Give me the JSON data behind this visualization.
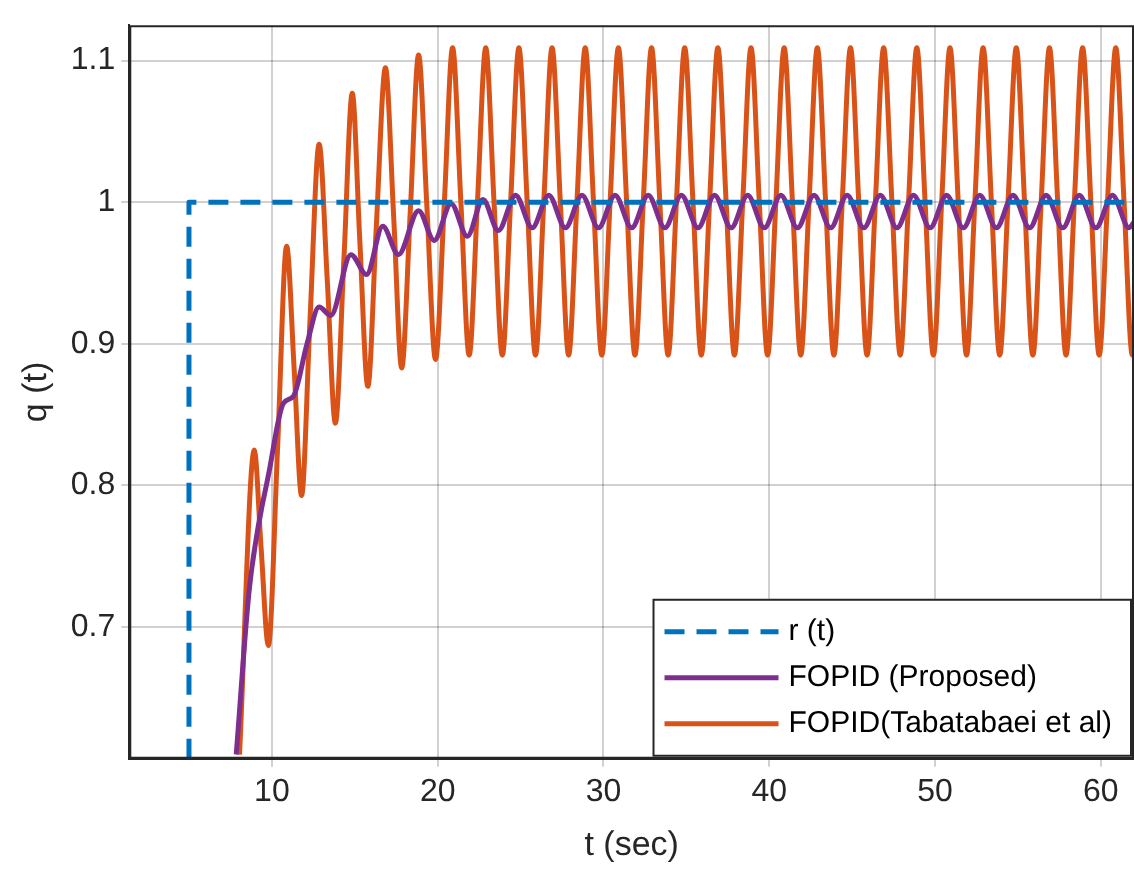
{
  "chart_data": {
    "type": "line",
    "xlabel": "t (sec)",
    "ylabel": "q (t)",
    "xlim": [
      1.4,
      62
    ],
    "ylim": [
      0.607,
      1.125
    ],
    "xticks": [
      10,
      20,
      30,
      40,
      50,
      60
    ],
    "yticks": [
      0.7,
      0.8,
      0.9,
      1,
      1.1
    ],
    "grid": true,
    "legend": "bottom right",
    "marker": "none",
    "series": [
      {
        "name": "r (t)",
        "color": "#0072bd",
        "line_style": "dashed",
        "x": [
          5,
          5,
          62
        ],
        "values": [
          0.607,
          1,
          1
        ]
      },
      {
        "name": "FOPID (Proposed)",
        "color": "#7e2f8e",
        "line_style": "solid",
        "x": [
          7.85,
          8.65,
          9.87,
          10.69,
          11.3,
          12.12,
          12.85,
          13.55,
          14.77,
          15.71,
          16.69,
          17.63,
          18.85,
          19.79,
          20.81,
          21.79,
          22.73,
          23.66,
          24.7,
          25.7,
          26.7,
          27.7,
          28.7,
          29.7,
          30.7,
          31.7,
          32.7,
          33.7,
          34.7,
          35.7,
          36.7,
          37.7,
          38.7,
          39.7,
          40.7,
          41.7,
          42.7,
          43.7,
          44.7,
          45.7,
          46.7,
          47.7,
          48.7,
          49.7,
          50.7,
          51.7,
          52.7,
          53.7,
          54.7,
          55.7,
          56.7,
          57.7,
          58.7,
          59.7,
          60.7,
          61.7,
          62
        ],
        "values": [
          0.61,
          0.728,
          0.812,
          0.858,
          0.863,
          0.9,
          0.926,
          0.92,
          0.963,
          0.949,
          0.983,
          0.963,
          0.994,
          0.973,
          0.999,
          0.976,
          1.002,
          0.98,
          1.005,
          0.982,
          1.005,
          0.982,
          1.005,
          0.982,
          1.005,
          0.982,
          1.005,
          0.982,
          1.005,
          0.982,
          1.005,
          0.982,
          1.005,
          0.982,
          1.005,
          0.982,
          1.005,
          0.982,
          1.005,
          0.982,
          1.005,
          0.982,
          1.005,
          0.982,
          1.005,
          0.982,
          1.005,
          0.982,
          1.005,
          0.982,
          1.005,
          0.982,
          1.005,
          0.982,
          1.005,
          0.982,
          0.986
        ]
      },
      {
        "name": "FOPID(Tabatabaei et al)",
        "color": "#d95319",
        "line_style": "solid",
        "x": [
          8.05,
          8.94,
          9.35,
          9.79,
          10.35,
          10.89,
          11.35,
          11.79,
          12.3,
          12.85,
          13.35,
          13.83,
          14.35,
          14.85,
          15.3,
          15.79,
          16.3,
          16.85,
          17.35,
          17.83,
          18.35,
          18.85,
          19.35,
          19.87,
          20.4,
          20.9,
          21.4,
          21.9,
          22.4,
          22.9,
          23.4,
          23.9,
          24.4,
          24.9,
          25.4,
          25.9,
          26.4,
          26.9,
          27.4,
          27.9,
          28.4,
          28.9,
          29.4,
          29.9,
          30.4,
          30.9,
          31.4,
          31.9,
          32.4,
          32.9,
          33.4,
          33.9,
          34.4,
          34.9,
          35.4,
          35.9,
          36.4,
          36.9,
          37.4,
          37.9,
          38.4,
          38.9,
          39.4,
          39.9,
          40.4,
          40.9,
          41.4,
          41.9,
          42.4,
          42.9,
          43.4,
          43.9,
          44.4,
          44.9,
          45.4,
          45.9,
          46.4,
          46.9,
          47.4,
          47.9,
          48.4,
          48.9,
          49.4,
          49.9,
          50.4,
          50.9,
          51.4,
          51.9,
          52.4,
          52.9,
          53.4,
          53.9,
          54.4,
          54.9,
          55.4,
          55.9,
          56.4,
          56.9,
          57.4,
          57.9,
          58.4,
          58.9,
          59.4,
          59.9,
          60.4,
          60.9,
          61.4,
          61.9,
          62
        ],
        "values": [
          0.61,
          0.825,
          0.756,
          0.687,
          0.828,
          0.969,
          0.881,
          0.793,
          0.917,
          1.041,
          0.943,
          0.844,
          0.961,
          1.077,
          0.974,
          0.87,
          0.983,
          1.095,
          0.989,
          0.883,
          0.994,
          1.104,
          0.997,
          0.889,
          0.999,
          1.109,
          1.0,
          0.892,
          1.0,
          1.109,
          1.0,
          0.892,
          1.0,
          1.109,
          1.0,
          0.892,
          1.0,
          1.109,
          1.0,
          0.892,
          1.0,
          1.109,
          1.0,
          0.892,
          1.0,
          1.109,
          1.0,
          0.892,
          1.0,
          1.109,
          1.0,
          0.892,
          1.0,
          1.109,
          1.0,
          0.892,
          1.0,
          1.109,
          1.0,
          0.892,
          1.0,
          1.109,
          1.0,
          0.892,
          1.0,
          1.109,
          1.0,
          0.892,
          1.0,
          1.109,
          1.0,
          0.892,
          1.0,
          1.109,
          1.0,
          0.892,
          1.0,
          1.109,
          1.0,
          0.892,
          1.0,
          1.109,
          1.0,
          0.892,
          1.0,
          1.109,
          1.0,
          0.892,
          1.0,
          1.109,
          1.0,
          0.892,
          1.0,
          1.109,
          1.0,
          0.892,
          1.0,
          1.109,
          1.0,
          0.892,
          1.0,
          1.109,
          1.0,
          0.892,
          1.0,
          1.109,
          1.0,
          0.892,
          0.895
        ]
      }
    ]
  }
}
